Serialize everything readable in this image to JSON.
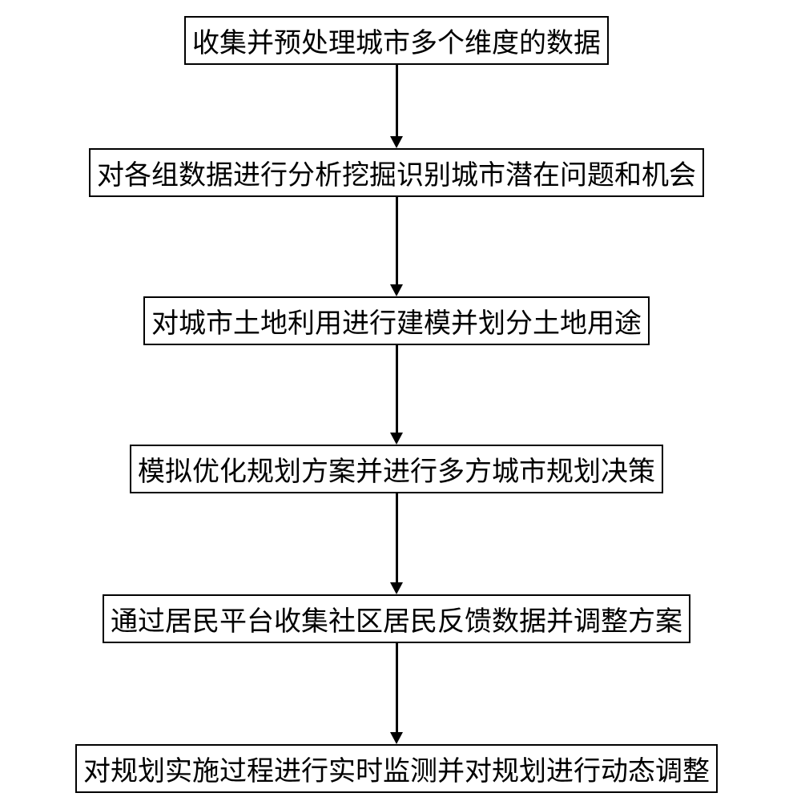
{
  "flowchart": {
    "type": "flowchart",
    "direction": "vertical",
    "background_color": "#ffffff",
    "node_border_color": "#000000",
    "node_border_width": 2,
    "node_background": "#ffffff",
    "node_text_color": "#000000",
    "node_font_size": 34,
    "node_font_family": "SimSun",
    "arrow_color": "#000000",
    "arrow_line_width": 3,
    "arrow_head_size": 11,
    "nodes": [
      {
        "id": "n1",
        "label": "收集并预处理城市多个维度的数据"
      },
      {
        "id": "n2",
        "label": "对各组数据进行分析挖掘识别城市潜在问题和机会"
      },
      {
        "id": "n3",
        "label": "对城市土地利用进行建模并划分土地用途"
      },
      {
        "id": "n4",
        "label": "模拟优化规划方案并进行多方城市规划决策"
      },
      {
        "id": "n5",
        "label": "通过居民平台收集社区居民反馈数据并调整方案"
      },
      {
        "id": "n6",
        "label": "对规划实施过程进行实时监测并对规划进行动态调整"
      }
    ],
    "edges": [
      {
        "from": "n1",
        "to": "n2",
        "length": 100
      },
      {
        "from": "n2",
        "to": "n3",
        "length": 120
      },
      {
        "from": "n3",
        "to": "n4",
        "length": 120
      },
      {
        "from": "n4",
        "to": "n5",
        "length": 122
      },
      {
        "from": "n5",
        "to": "n6",
        "length": 122
      }
    ]
  }
}
